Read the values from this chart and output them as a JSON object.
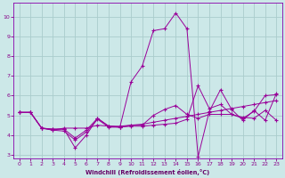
{
  "xlabel": "Windchill (Refroidissement éolien,°C)",
  "bg_color": "#cce8e8",
  "grid_color": "#aacccc",
  "line_color": "#990099",
  "xlim": [
    -0.5,
    23.5
  ],
  "ylim": [
    2.8,
    10.7
  ],
  "yticks": [
    3,
    4,
    5,
    6,
    7,
    8,
    9,
    10
  ],
  "xticks": [
    0,
    1,
    2,
    3,
    4,
    5,
    6,
    7,
    8,
    9,
    10,
    11,
    12,
    13,
    14,
    15,
    16,
    17,
    18,
    19,
    20,
    21,
    22,
    23
  ],
  "line1_x": [
    0,
    1,
    2,
    3,
    4,
    5,
    6,
    7,
    8,
    9,
    10,
    11,
    12,
    13,
    14,
    15,
    16,
    17,
    18,
    19,
    20,
    21,
    22,
    23
  ],
  "line1_y": [
    5.15,
    5.15,
    4.35,
    4.3,
    4.3,
    3.85,
    4.25,
    4.85,
    4.45,
    4.45,
    4.5,
    4.55,
    4.65,
    4.75,
    4.85,
    4.95,
    5.05,
    5.15,
    5.25,
    5.35,
    5.45,
    5.55,
    5.65,
    5.75
  ],
  "line2_x": [
    0,
    1,
    2,
    3,
    4,
    5,
    6,
    7,
    8,
    9,
    10,
    11,
    12,
    13,
    14,
    15,
    16,
    17,
    18,
    19,
    20,
    21,
    22,
    23
  ],
  "line2_y": [
    5.15,
    5.15,
    4.35,
    4.3,
    4.3,
    3.35,
    4.0,
    4.85,
    4.45,
    4.4,
    6.7,
    7.5,
    9.3,
    9.4,
    10.2,
    9.4,
    2.9,
    5.2,
    6.3,
    5.3,
    4.75,
    5.25,
    4.75,
    6.1
  ],
  "line3_x": [
    0,
    1,
    2,
    3,
    4,
    5,
    6,
    7,
    8,
    9,
    10,
    11,
    12,
    13,
    14,
    15,
    16,
    17,
    18,
    19,
    20,
    21,
    22,
    23
  ],
  "line3_y": [
    5.15,
    5.15,
    4.35,
    4.25,
    4.35,
    4.35,
    4.35,
    4.5,
    4.45,
    4.4,
    4.5,
    4.5,
    5.0,
    5.3,
    5.5,
    5.05,
    4.85,
    5.05,
    5.05,
    5.05,
    4.85,
    5.2,
    6.0,
    6.05
  ],
  "line4_x": [
    0,
    1,
    2,
    3,
    4,
    5,
    6,
    7,
    8,
    9,
    10,
    11,
    12,
    13,
    14,
    15,
    16,
    17,
    18,
    19,
    20,
    21,
    22,
    23
  ],
  "line4_y": [
    5.15,
    5.15,
    4.35,
    4.25,
    4.2,
    3.75,
    4.15,
    4.8,
    4.4,
    4.4,
    4.45,
    4.45,
    4.5,
    4.55,
    4.6,
    4.8,
    6.5,
    5.35,
    5.55,
    5.05,
    4.9,
    4.85,
    5.25,
    4.75
  ]
}
